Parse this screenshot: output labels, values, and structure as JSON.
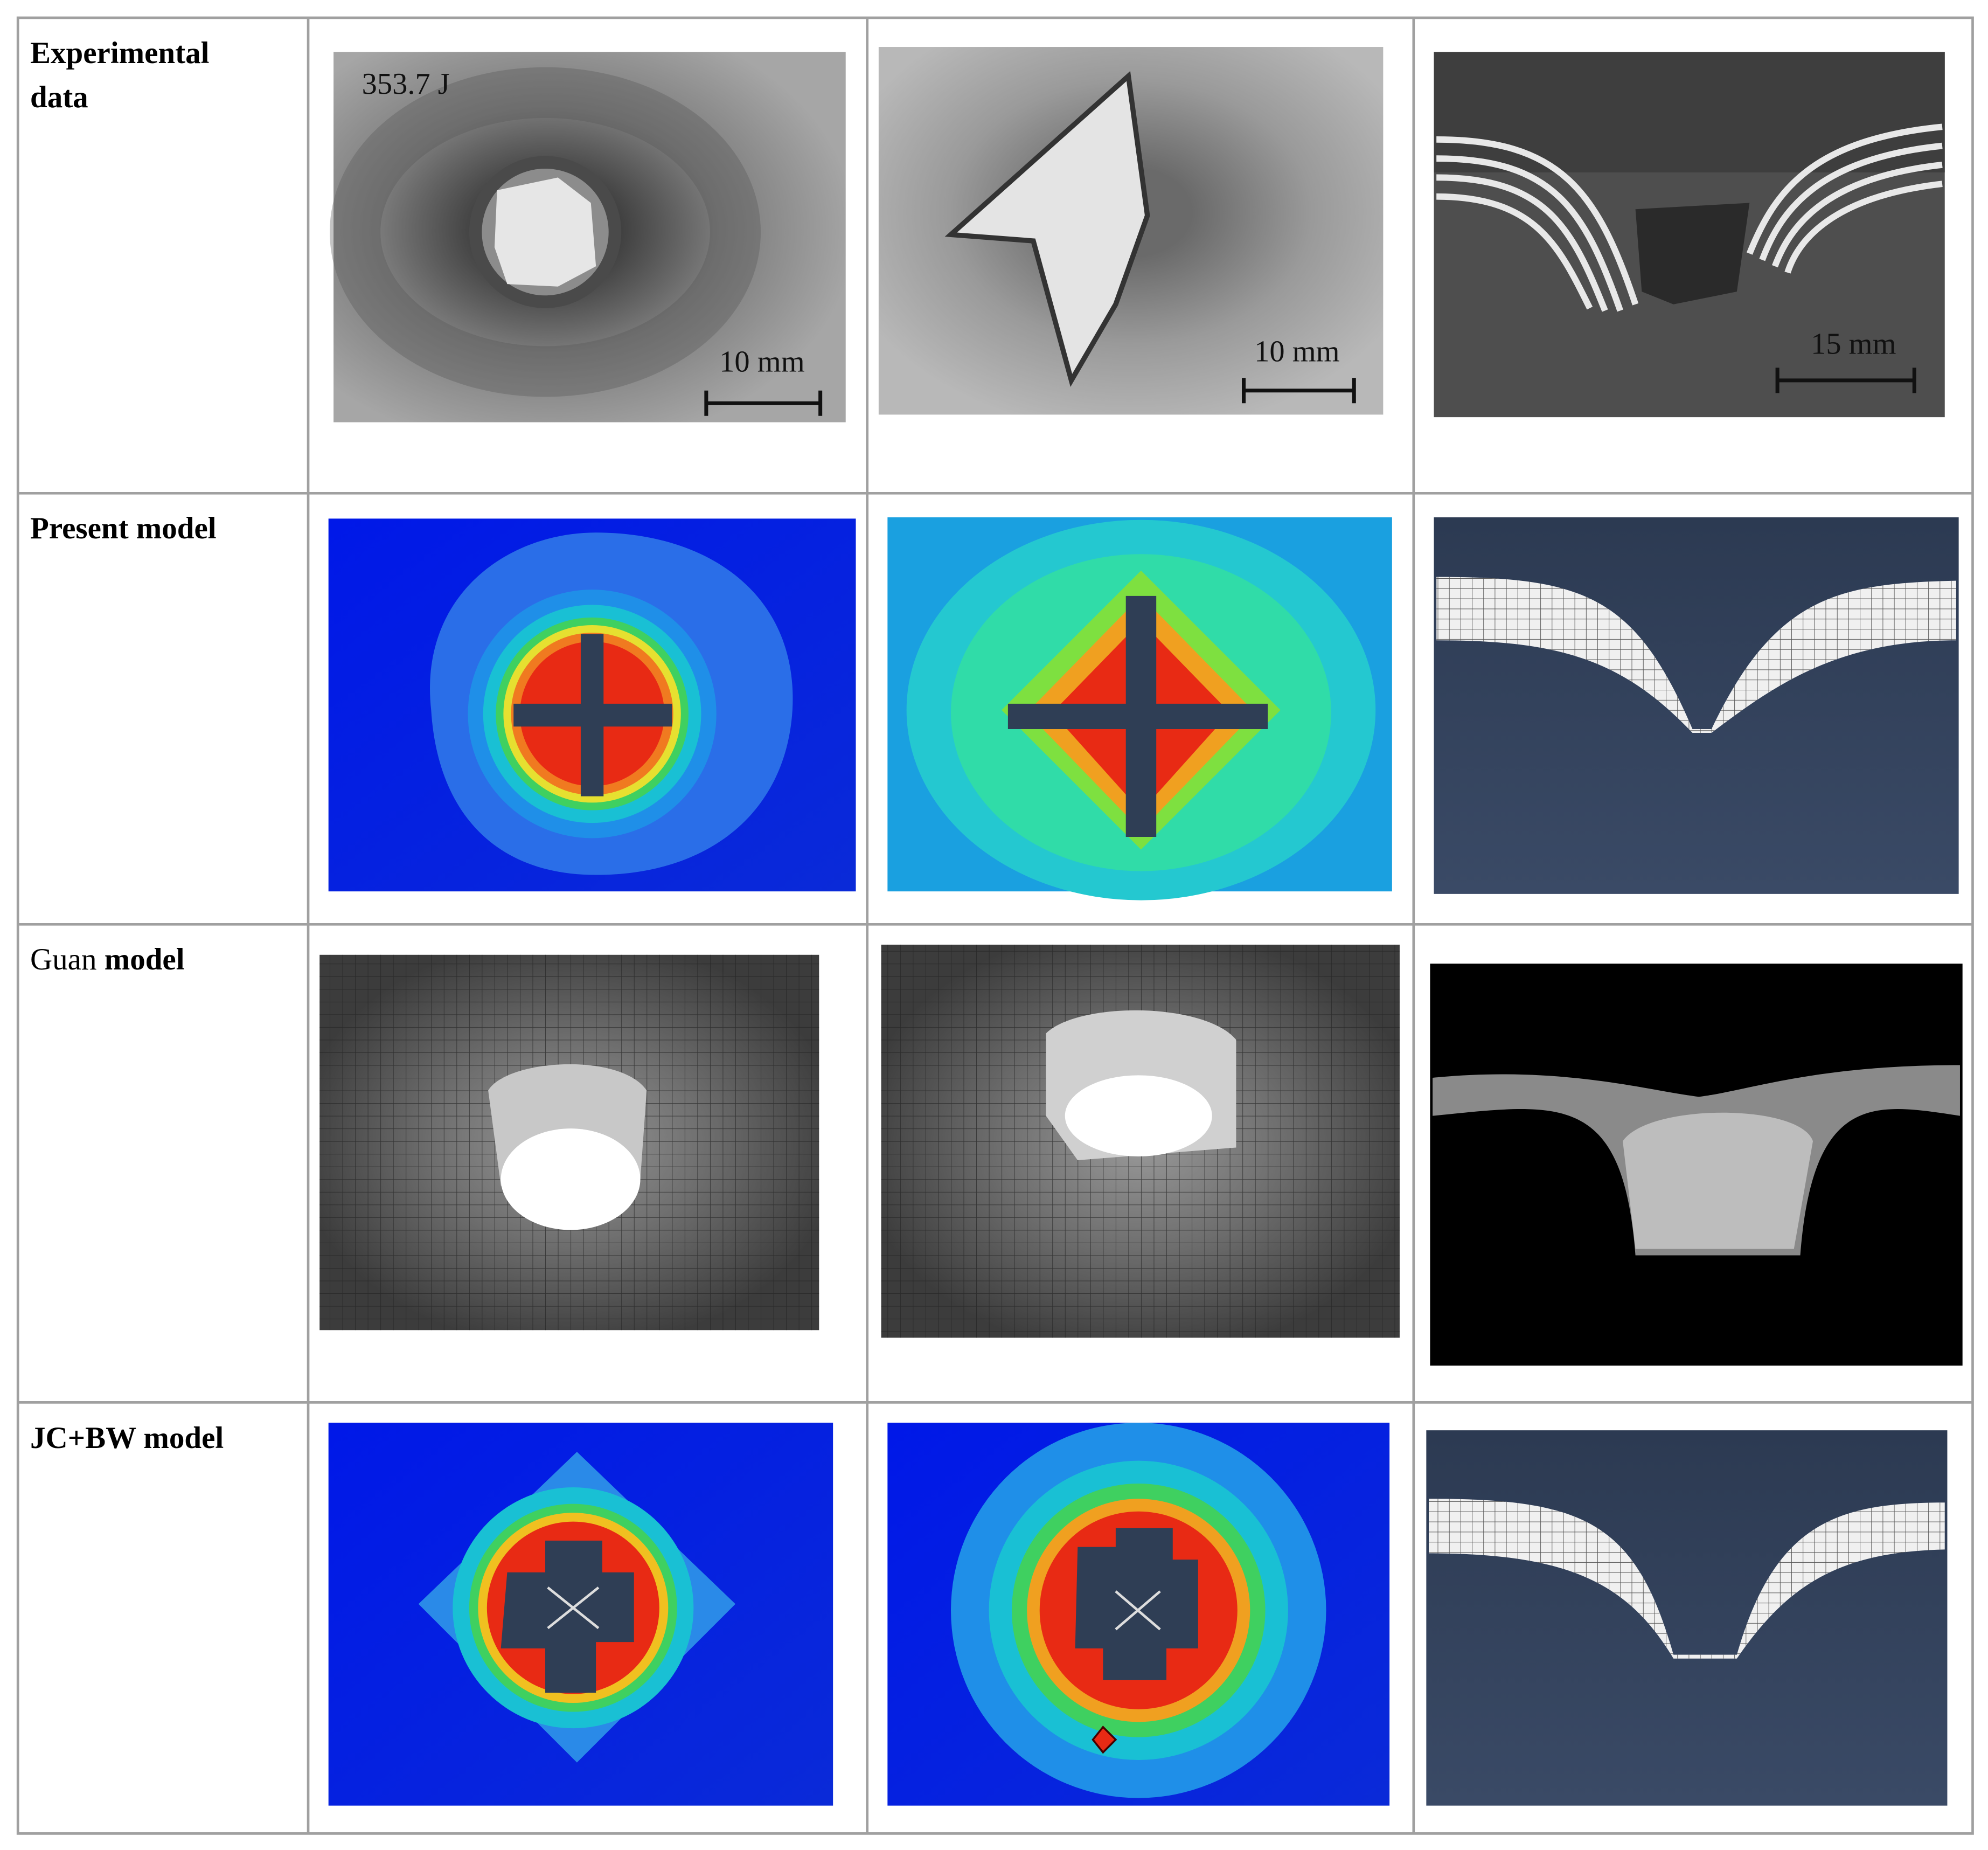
{
  "rows": [
    {
      "label": "Experimental data",
      "cells": [
        {
          "annotation": "353.7 J",
          "scale": "10 mm"
        },
        {
          "scale": "10 mm"
        },
        {
          "scale": "15 mm"
        }
      ]
    },
    {
      "label": "Present model"
    },
    {
      "label_regular": "Guan",
      "label_bold": "model"
    },
    {
      "label": "JC+BW model"
    }
  ]
}
